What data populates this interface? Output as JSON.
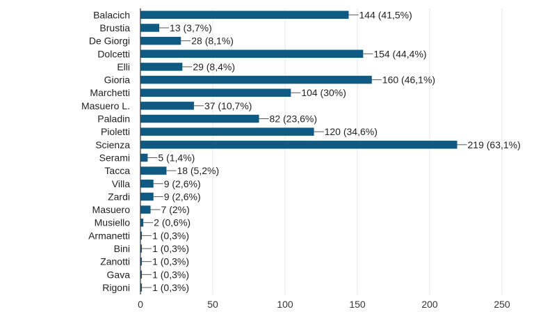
{
  "chart_data": {
    "type": "bar",
    "orientation": "horizontal",
    "categories": [
      "Balacich",
      "Brustia",
      "De Giorgi",
      "Dolcetti",
      "Elli",
      "Gioria",
      "Marchetti",
      "Masuero L.",
      "Paladin",
      "Pioletti",
      "Scienza",
      "Serami",
      "Tacca",
      "Villa",
      "Zardi",
      "Masuero",
      "Musiello",
      "Armanetti",
      "Bini",
      "Zanotti",
      "Gava",
      "Rigoni"
    ],
    "values": [
      144,
      13,
      28,
      154,
      29,
      160,
      104,
      37,
      82,
      120,
      219,
      5,
      18,
      9,
      9,
      7,
      2,
      1,
      1,
      1,
      1,
      1
    ],
    "data_labels": [
      "144 (41,5%)",
      "13 (3,7%)",
      "28 (8,1%)",
      "154 (44,4%)",
      "29 (8,4%)",
      "160 (46,1%)",
      "104 (30%)",
      "37 (10,7%)",
      "82 (23,6%)",
      "120 (34,6%)",
      "219 (63,1%)",
      "5 (1,4%)",
      "18 (5,2%)",
      "9 (2,6%)",
      "9 (2,6%)",
      "7 (2%)",
      "2 (0,6%)",
      "1 (0,3%)",
      "1 (0,3%)",
      "1 (0,3%)",
      "1 (0,3%)",
      "1 (0,3%)"
    ],
    "xlim": [
      0,
      250
    ],
    "x_ticks": [
      "0",
      "50",
      "100",
      "150",
      "200",
      "250"
    ],
    "title": "",
    "xlabel": "",
    "ylabel": "",
    "grid": "vertical",
    "bar_color": "#0f5a82",
    "grid_color": "#e6e6e6",
    "axis_color": "#333333"
  }
}
